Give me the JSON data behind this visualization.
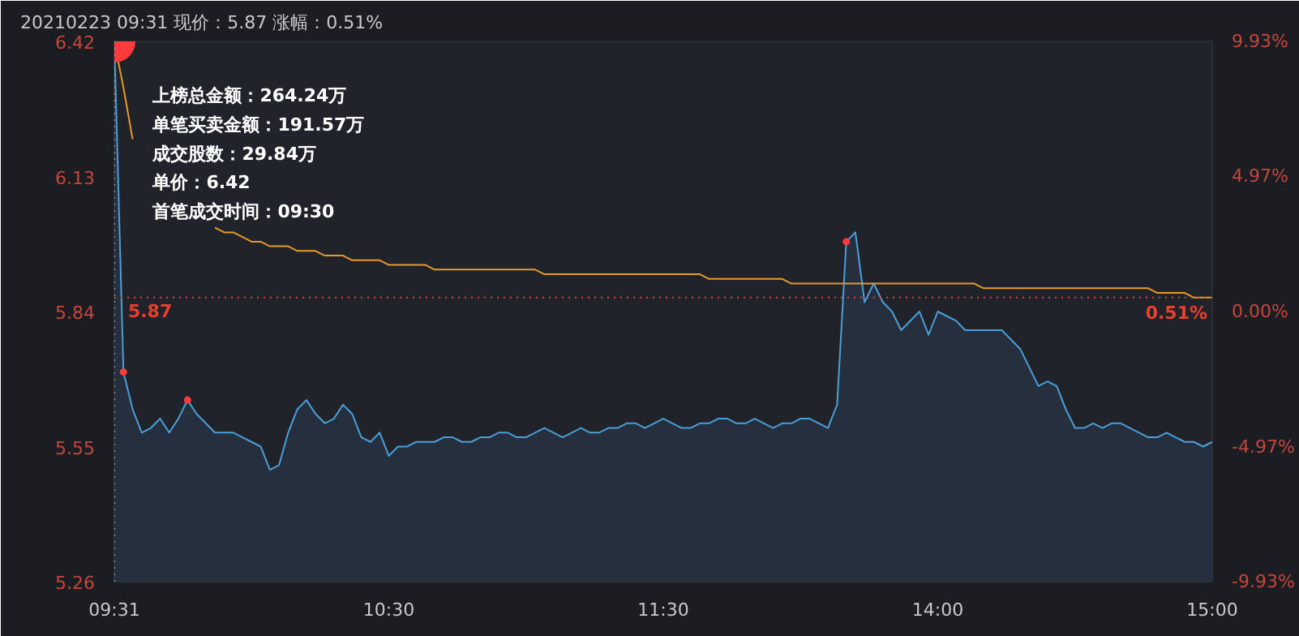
{
  "chart_data": {
    "type": "line",
    "title": "20210223 09:31 现价：5.87 涨幅：0.51%",
    "categories": [
      "09:31",
      null,
      null,
      null,
      null,
      null,
      null,
      null,
      null,
      null,
      null,
      null,
      null,
      null,
      null,
      null,
      null,
      null,
      null,
      null,
      null,
      null,
      null,
      null,
      null,
      null,
      null,
      null,
      null,
      null,
      "10:30",
      null,
      null,
      null,
      null,
      null,
      null,
      null,
      null,
      null,
      null,
      null,
      null,
      null,
      null,
      null,
      null,
      null,
      null,
      null,
      null,
      null,
      null,
      null,
      null,
      null,
      null,
      null,
      null,
      null,
      "11:30",
      null,
      null,
      null,
      null,
      null,
      null,
      null,
      null,
      null,
      null,
      null,
      null,
      null,
      null,
      null,
      null,
      null,
      null,
      null,
      null,
      null,
      null,
      null,
      null,
      null,
      null,
      null,
      null,
      null,
      "14:00",
      null,
      null,
      null,
      null,
      null,
      null,
      null,
      null,
      null,
      null,
      null,
      null,
      null,
      null,
      null,
      null,
      null,
      null,
      null,
      null,
      null,
      null,
      null,
      null,
      null,
      null,
      null,
      null,
      null,
      "15:00"
    ],
    "ylim": [
      5.26,
      6.42
    ],
    "yticks": [
      5.26,
      5.55,
      5.84,
      6.13,
      6.42
    ],
    "y2lim": [
      -9.93,
      9.93
    ],
    "y2ticks": [
      {
        "value": -9.93,
        "label": "-9.93%"
      },
      {
        "value": -4.97,
        "label": "-4.97%"
      },
      {
        "value": 0,
        "label": "0.00%"
      },
      {
        "value": 4.97,
        "label": "4.97%"
      },
      {
        "value": 9.93,
        "label": "9.93%"
      }
    ],
    "grid": false,
    "series": [
      {
        "type": "area",
        "color": "#4a9fd8",
        "values": [
          6.42,
          5.71,
          5.63,
          5.58,
          5.59,
          5.61,
          5.58,
          5.61,
          5.65,
          5.62,
          5.6,
          5.58,
          5.58,
          5.58,
          5.57,
          5.56,
          5.55,
          5.5,
          5.51,
          5.58,
          5.63,
          5.65,
          5.62,
          5.6,
          5.61,
          5.64,
          5.62,
          5.57,
          5.56,
          5.58,
          5.53,
          5.55,
          5.55,
          5.56,
          5.56,
          5.56,
          5.57,
          5.57,
          5.56,
          5.56,
          5.57,
          5.57,
          5.58,
          5.58,
          5.57,
          5.57,
          5.58,
          5.59,
          5.58,
          5.57,
          5.58,
          5.59,
          5.58,
          5.58,
          5.59,
          5.59,
          5.6,
          5.6,
          5.59,
          5.6,
          5.61,
          5.6,
          5.59,
          5.59,
          5.6,
          5.6,
          5.61,
          5.61,
          5.6,
          5.6,
          5.61,
          5.6,
          5.59,
          5.6,
          5.6,
          5.61,
          5.61,
          5.6,
          5.59,
          5.64,
          5.99,
          6.01,
          5.86,
          5.9,
          5.86,
          5.84,
          5.8,
          5.82,
          5.84,
          5.79,
          5.84,
          5.83,
          5.82,
          5.8,
          5.8,
          5.8,
          5.8,
          5.8,
          5.78,
          5.76,
          5.72,
          5.68,
          5.69,
          5.68,
          5.63,
          5.59,
          5.59,
          5.6,
          5.59,
          5.6,
          5.6,
          5.59,
          5.58,
          5.57,
          5.57,
          5.58,
          5.57,
          5.56,
          5.56,
          5.55,
          5.56
        ]
      },
      {
        "color": "#e89a2c",
        "values": [
          6.42,
          6.32,
          6.21,
          null,
          null,
          null,
          null,
          null,
          null,
          null,
          null,
          6.02,
          6.01,
          6.01,
          6.0,
          5.99,
          5.99,
          5.98,
          5.98,
          5.98,
          5.97,
          5.97,
          5.97,
          5.96,
          5.96,
          5.96,
          5.95,
          5.95,
          5.95,
          5.95,
          5.94,
          5.94,
          5.94,
          5.94,
          5.94,
          5.93,
          5.93,
          5.93,
          5.93,
          5.93,
          5.93,
          5.93,
          5.93,
          5.93,
          5.93,
          5.93,
          5.93,
          5.92,
          5.92,
          5.92,
          5.92,
          5.92,
          5.92,
          5.92,
          5.92,
          5.92,
          5.92,
          5.92,
          5.92,
          5.92,
          5.92,
          5.92,
          5.92,
          5.92,
          5.92,
          5.91,
          5.91,
          5.91,
          5.91,
          5.91,
          5.91,
          5.91,
          5.91,
          5.91,
          5.9,
          5.9,
          5.9,
          5.9,
          5.9,
          5.9,
          5.9,
          5.9,
          5.9,
          5.9,
          5.9,
          5.9,
          5.9,
          5.9,
          5.9,
          5.9,
          5.9,
          5.9,
          5.9,
          5.9,
          5.9,
          5.89,
          5.89,
          5.89,
          5.89,
          5.89,
          5.89,
          5.89,
          5.89,
          5.89,
          5.89,
          5.89,
          5.89,
          5.89,
          5.89,
          5.89,
          5.89,
          5.89,
          5.89,
          5.89,
          5.88,
          5.88,
          5.88,
          5.88,
          5.87,
          5.87,
          5.87
        ]
      },
      {
        "type": "bubble",
        "color": "#ff3b3b",
        "values": [
          6.42,
          5.71,
          null,
          null,
          null,
          null,
          null,
          null,
          5.65,
          null,
          null,
          null,
          null,
          null,
          null,
          null,
          null,
          null,
          null,
          null,
          null,
          null,
          null,
          null,
          null,
          null,
          null,
          null,
          null,
          null,
          null,
          null,
          null,
          null,
          null,
          null,
          null,
          null,
          null,
          null,
          null,
          null,
          null,
          null,
          null,
          null,
          null,
          null,
          null,
          null,
          null,
          null,
          null,
          null,
          null,
          null,
          null,
          null,
          null,
          null,
          null,
          null,
          null,
          null,
          null,
          null,
          null,
          null,
          null,
          null,
          null,
          null,
          null,
          null,
          null,
          null,
          null,
          null,
          null,
          null,
          5.99,
          null,
          null,
          null,
          null,
          null,
          null,
          null,
          null,
          null,
          null,
          null,
          null,
          null,
          null,
          null,
          null,
          null,
          null,
          null,
          null,
          null,
          null,
          null,
          null,
          null,
          null,
          null,
          null,
          null,
          null,
          null,
          null,
          null,
          null,
          null,
          null,
          null,
          null,
          null,
          null
        ],
        "sizes": [
          1,
          0.03,
          null,
          null,
          null,
          null,
          null,
          null,
          0.03,
          null,
          null,
          null,
          null,
          null,
          null,
          null,
          null,
          null,
          null,
          null,
          null,
          null,
          null,
          null,
          null,
          null,
          null,
          null,
          null,
          null,
          null,
          null,
          null,
          null,
          null,
          null,
          null,
          null,
          null,
          null,
          null,
          null,
          null,
          null,
          null,
          null,
          null,
          null,
          null,
          null,
          null,
          null,
          null,
          null,
          null,
          null,
          null,
          null,
          null,
          null,
          null,
          null,
          null,
          null,
          null,
          null,
          null,
          null,
          null,
          null,
          null,
          null,
          null,
          null,
          null,
          null,
          null,
          null,
          null,
          null,
          0.03,
          null,
          null,
          null,
          null,
          null,
          null,
          null,
          null,
          null,
          null,
          null,
          null,
          null,
          null,
          null,
          null,
          null,
          null,
          null,
          null,
          null,
          null,
          null,
          null,
          null,
          null,
          null,
          null,
          null,
          null,
          null,
          null,
          null,
          null,
          null,
          null,
          null,
          null,
          null,
          null
        ]
      }
    ],
    "ref_lines": [
      {
        "axis": "y",
        "value": 5.87,
        "label": "5.87",
        "color": "#e8402e",
        "line_style": "dotted"
      },
      {
        "axis": "x",
        "value": "09:31",
        "color": "#aaaaaa",
        "line_style": "dotted"
      }
    ],
    "annotations": [
      {
        "text": "0.51%",
        "x": "15:00",
        "y": 5.87
      },
      "上榜总金额：264.24万",
      "单笔买卖金额：191.57万",
      "成交股数：29.84万",
      "单价：6.42",
      "首笔成交时间：09:30"
    ]
  }
}
